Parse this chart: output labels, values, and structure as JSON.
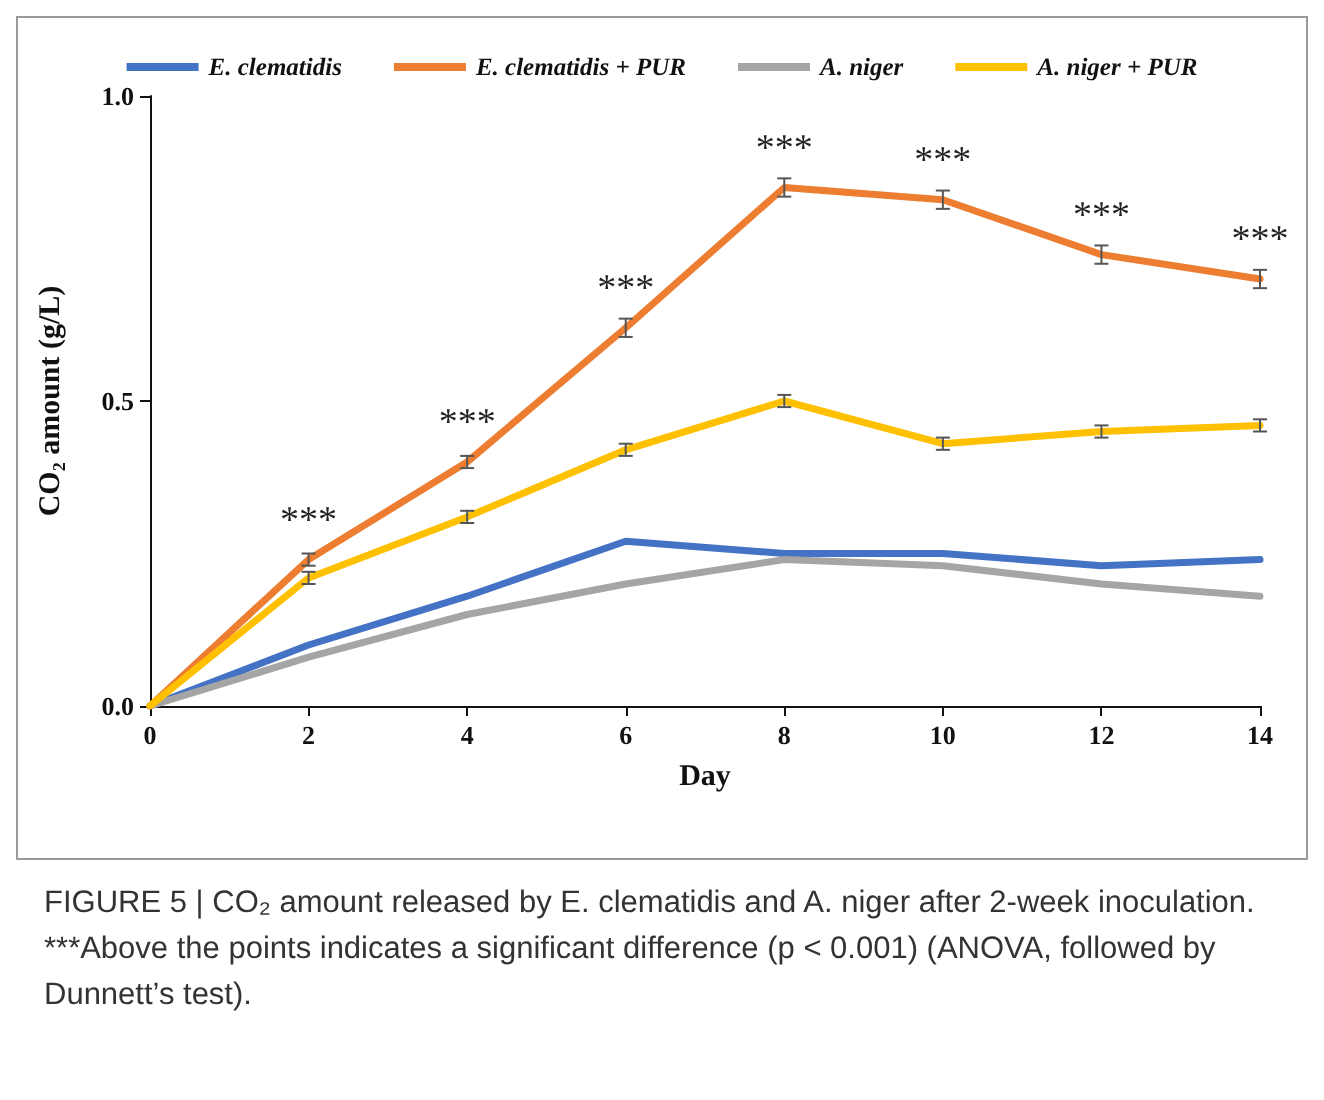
{
  "chart_data": {
    "type": "line",
    "xlabel": "Day",
    "ylabel": "CO₂ amount (g/L)",
    "x": [
      0,
      2,
      4,
      6,
      8,
      10,
      12,
      14
    ],
    "series": [
      {
        "name": "E. clematidis",
        "color": "#4472c4",
        "values": [
          0,
          0.1,
          0.18,
          0.27,
          0.25,
          0.25,
          0.23,
          0.24
        ]
      },
      {
        "name": "E. clematidis + PUR",
        "color": "#ed7d31",
        "values": [
          0,
          0.24,
          0.4,
          0.62,
          0.85,
          0.83,
          0.74,
          0.7
        ],
        "errors": [
          null,
          0.01,
          0.01,
          0.015,
          0.015,
          0.015,
          0.015,
          0.015
        ]
      },
      {
        "name": "A. niger",
        "color": "#a5a5a5",
        "values": [
          0,
          0.08,
          0.15,
          0.2,
          0.24,
          0.23,
          0.2,
          0.18
        ]
      },
      {
        "name": "A. niger + PUR",
        "color": "#ffc000",
        "values": [
          0,
          0.21,
          0.31,
          0.42,
          0.5,
          0.43,
          0.45,
          0.46
        ],
        "errors": [
          null,
          0.01,
          0.01,
          0.01,
          0.01,
          0.01,
          0.01,
          0.01
        ]
      }
    ],
    "xlim": [
      0,
      14
    ],
    "xticks": [
      0,
      2,
      4,
      6,
      8,
      10,
      12,
      14
    ],
    "ylim": [
      0,
      1
    ],
    "yticks": [
      {
        "value": 0,
        "label": "0.0"
      },
      {
        "value": 0.5,
        "label": "0.5"
      },
      {
        "value": 1,
        "label": "1.0"
      }
    ],
    "grid": false,
    "legend": "top",
    "marker": "none",
    "line_style": "solid",
    "annotations": [
      {
        "text": "***",
        "x": 2,
        "y": 0.24
      },
      {
        "text": "***",
        "x": 4,
        "y": 0.4
      },
      {
        "text": "***",
        "x": 6,
        "y": 0.62
      },
      {
        "text": "***",
        "x": 8,
        "y": 0.85
      },
      {
        "text": "***",
        "x": 10,
        "y": 0.83
      },
      {
        "text": "***",
        "x": 12,
        "y": 0.74
      },
      {
        "text": "***",
        "x": 14,
        "y": 0.7
      },
      "FIGURE 5 | CO₂ amount released by E. clematidis and A. niger after 2-week inoculation. ***Above the points indicates a significant difference (p < 0.001) (ANOVA, followed by Dunnett’s test)."
    ]
  }
}
